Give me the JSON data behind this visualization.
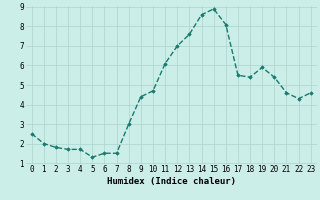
{
  "x": [
    0,
    1,
    2,
    3,
    4,
    5,
    6,
    7,
    8,
    9,
    10,
    11,
    12,
    13,
    14,
    15,
    16,
    17,
    18,
    19,
    20,
    21,
    22,
    23
  ],
  "y": [
    2.5,
    2.0,
    1.8,
    1.7,
    1.7,
    1.3,
    1.5,
    1.5,
    3.0,
    4.4,
    4.7,
    6.1,
    7.0,
    7.6,
    8.6,
    8.9,
    8.1,
    5.5,
    5.4,
    5.9,
    5.4,
    4.6,
    4.3,
    4.6
  ],
  "line_color": "#1a7a6e",
  "marker": "D",
  "markersize": 1.8,
  "linewidth": 1.0,
  "bg_color": "#cceee8",
  "grid_color": "#aad4ce",
  "xlabel": "Humidex (Indice chaleur)",
  "ylim": [
    1,
    9
  ],
  "xlim": [
    -0.5,
    23.5
  ],
  "yticks": [
    1,
    2,
    3,
    4,
    5,
    6,
    7,
    8,
    9
  ],
  "xticks": [
    0,
    1,
    2,
    3,
    4,
    5,
    6,
    7,
    8,
    9,
    10,
    11,
    12,
    13,
    14,
    15,
    16,
    17,
    18,
    19,
    20,
    21,
    22,
    23
  ],
  "xlabel_fontsize": 6.5,
  "tick_fontsize": 5.5,
  "linestyle": "--"
}
